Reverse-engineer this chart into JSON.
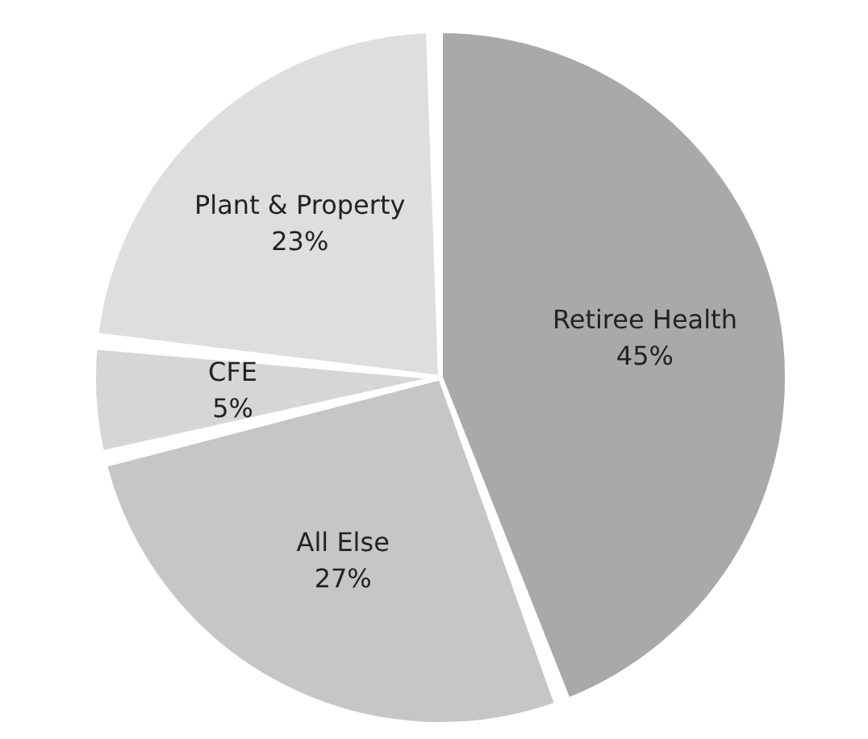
{
  "chart_data": {
    "type": "pie",
    "categories": [
      "Retiree Health",
      "All Else",
      "CFE",
      "Plant & Property"
    ],
    "values": [
      45,
      27,
      5,
      23
    ],
    "value_labels": [
      "45%",
      "27%",
      "5%",
      "23%"
    ],
    "colors": [
      "#a9a9a9",
      "#c6c6c6",
      "#d6d6d6",
      "#dedede"
    ]
  }
}
